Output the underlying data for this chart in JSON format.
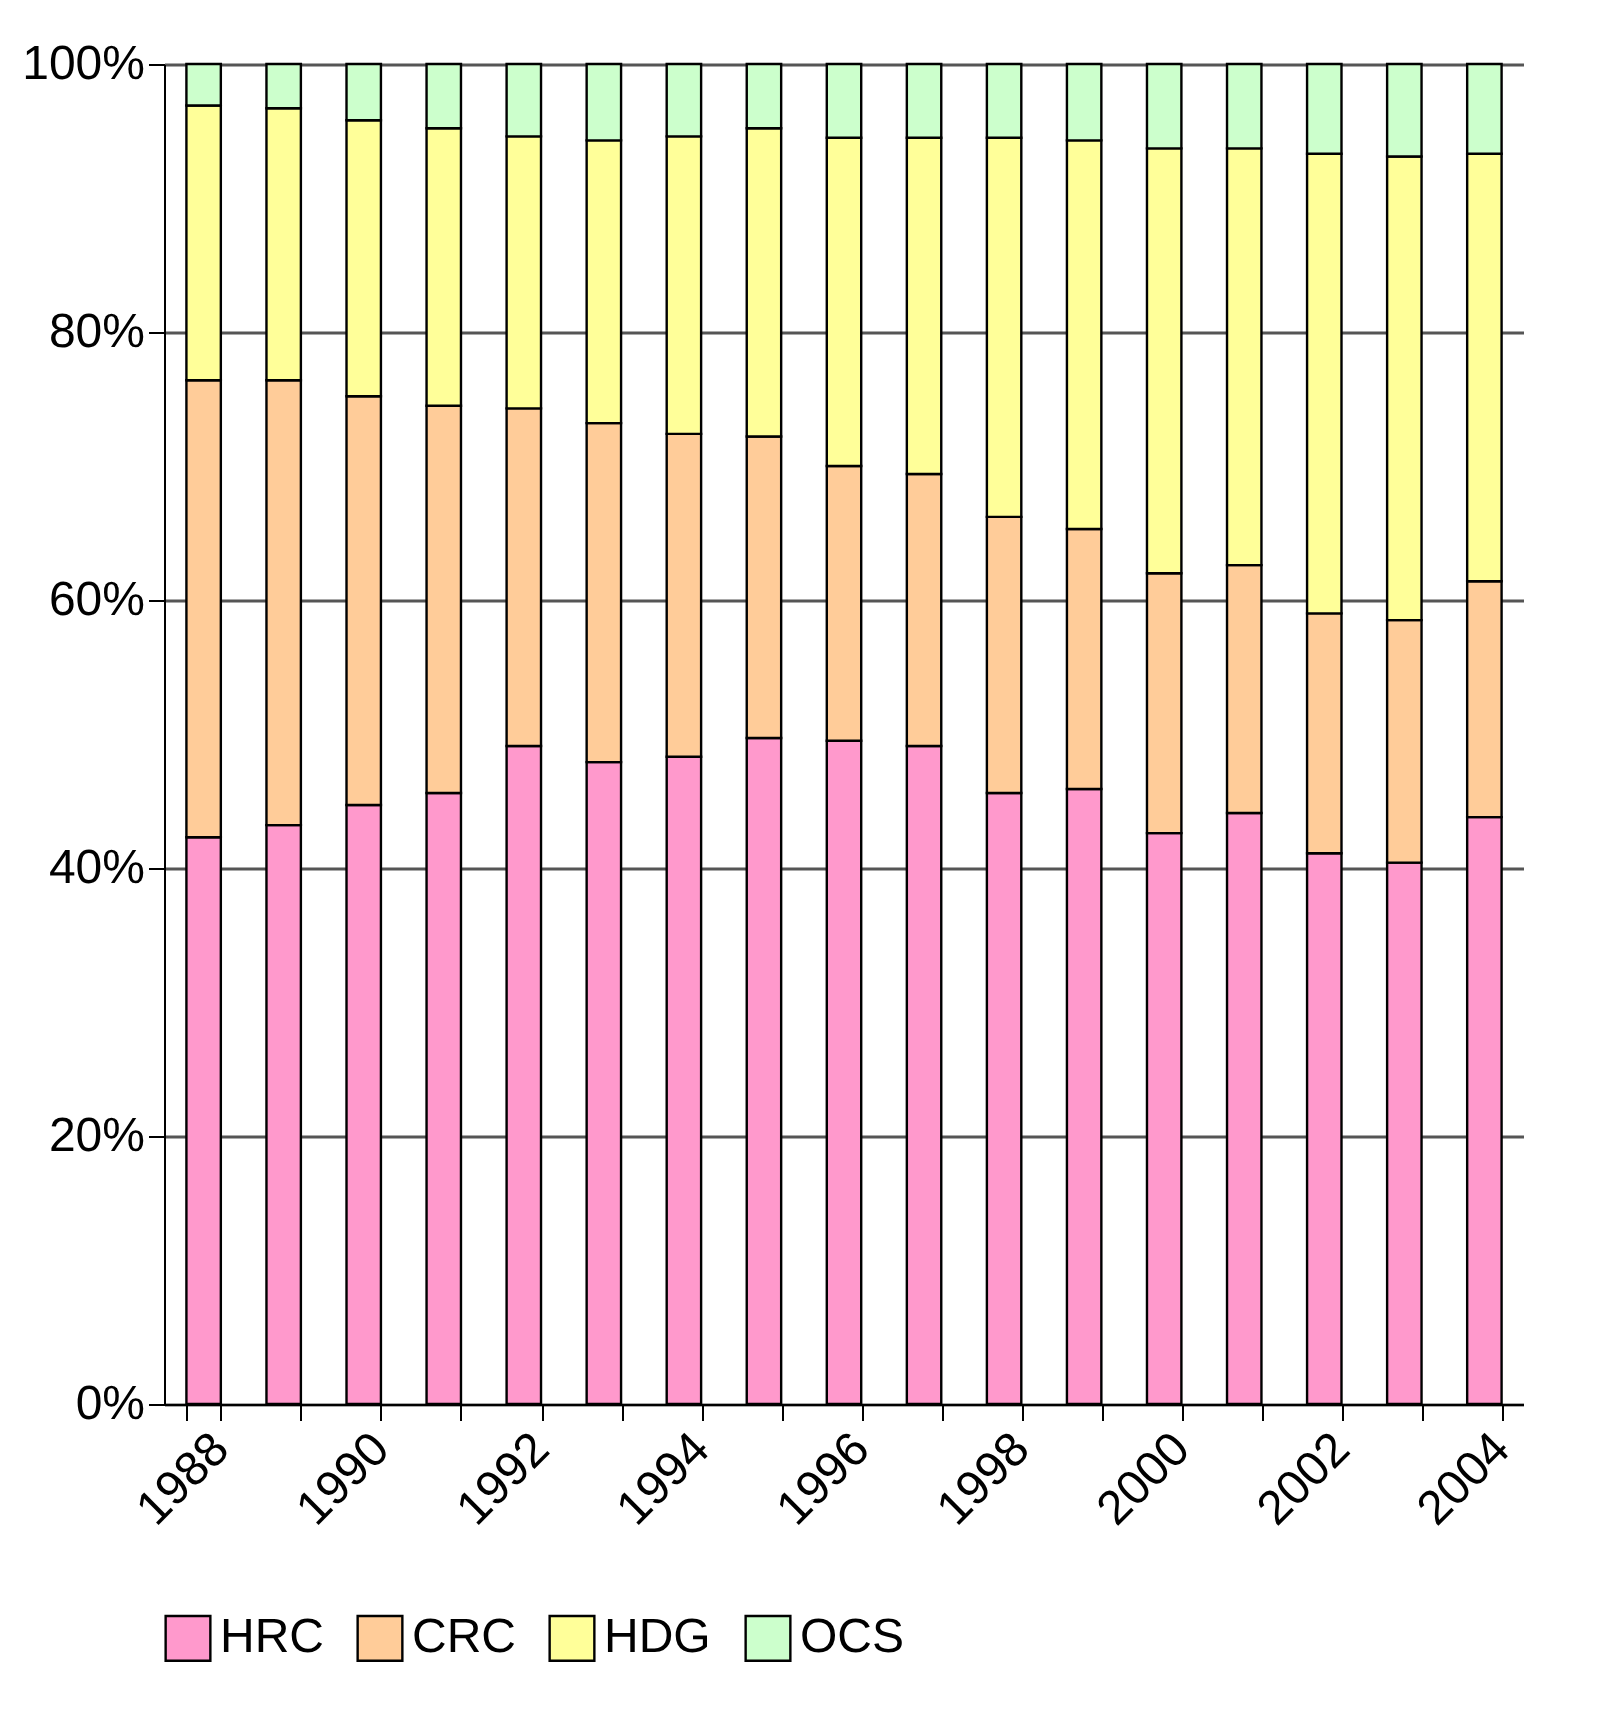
{
  "chart_data": {
    "type": "bar",
    "stacked": true,
    "categories": [
      "1988",
      null,
      "1990",
      null,
      "1992",
      null,
      "1994",
      null,
      "1996",
      null,
      "1998",
      null,
      "2000",
      null,
      "2002",
      null,
      "2004"
    ],
    "series": [
      {
        "name": "HRC",
        "color": "#ff99cc",
        "values": [
          42.3,
          43.2,
          44.7,
          45.6,
          49.1,
          47.9,
          48.3,
          49.7,
          49.5,
          49.1,
          45.6,
          45.9,
          42.6,
          44.1,
          41.1,
          40.4,
          43.8
        ]
      },
      {
        "name": "CRC",
        "color": "#ffcc99",
        "values": [
          34.1,
          33.2,
          30.5,
          28.9,
          25.2,
          25.3,
          24.1,
          22.5,
          20.5,
          20.3,
          20.6,
          19.4,
          19.4,
          18.5,
          17.9,
          18.1,
          17.6
        ]
      },
      {
        "name": "HDG",
        "color": "#ffff99",
        "values": [
          20.5,
          20.3,
          20.6,
          20.7,
          20.3,
          21.1,
          22.2,
          23.0,
          24.5,
          25.1,
          28.3,
          29.0,
          31.7,
          31.1,
          34.3,
          34.6,
          31.9
        ]
      },
      {
        "name": "OCS",
        "color": "#ccffcc",
        "values": [
          3.1,
          3.3,
          4.2,
          4.8,
          5.4,
          5.7,
          5.4,
          4.8,
          5.5,
          5.5,
          5.5,
          5.7,
          6.3,
          6.3,
          6.7,
          6.9,
          6.7
        ]
      }
    ],
    "ylim": [
      0,
      100
    ],
    "yticks": [
      {
        "value": 0,
        "label": "0%"
      },
      {
        "value": 20,
        "label": "20%"
      },
      {
        "value": 40,
        "label": "40%"
      },
      {
        "value": 60,
        "label": "60%"
      },
      {
        "value": 80,
        "label": "80%"
      },
      {
        "value": 100,
        "label": "100%"
      }
    ],
    "grid": "y",
    "legend": "bottom"
  }
}
